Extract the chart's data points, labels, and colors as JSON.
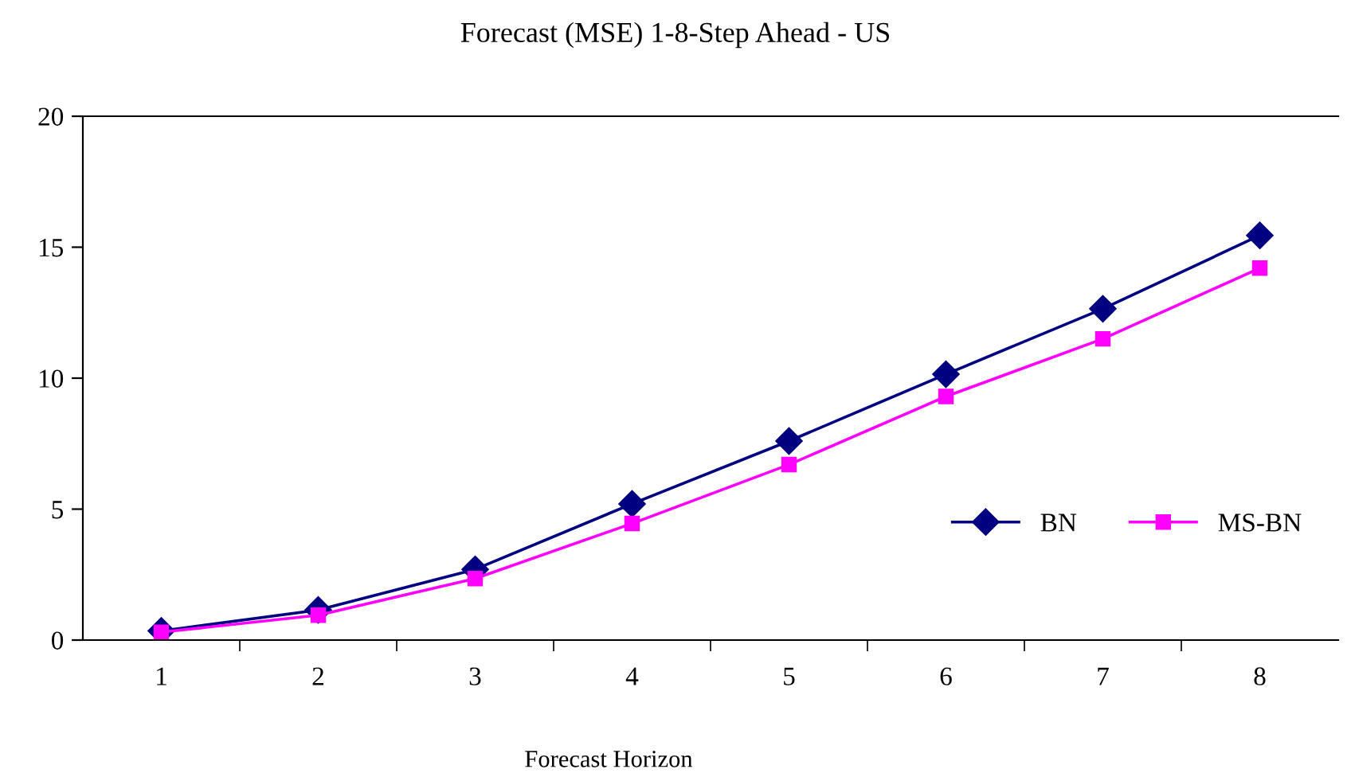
{
  "chart_data": {
    "type": "line",
    "title": "Forecast (MSE) 1-8-Step Ahead - US",
    "xlabel": "Forecast Horizon",
    "categories": [
      "1",
      "2",
      "3",
      "4",
      "5",
      "6",
      "7",
      "8"
    ],
    "series": [
      {
        "name": "BN",
        "color": "#000080",
        "marker": "diamond",
        "values": [
          0.35,
          1.15,
          2.7,
          5.2,
          7.6,
          10.15,
          12.65,
          15.45
        ]
      },
      {
        "name": "MS-BN",
        "color": "#ff00ff",
        "marker": "square",
        "values": [
          0.3,
          0.95,
          2.35,
          4.45,
          6.7,
          9.3,
          11.5,
          14.2
        ]
      }
    ],
    "ylim": [
      0,
      20
    ],
    "yticks": [
      0,
      5,
      10,
      15,
      20
    ],
    "grid": false,
    "legend": "bottom right"
  }
}
